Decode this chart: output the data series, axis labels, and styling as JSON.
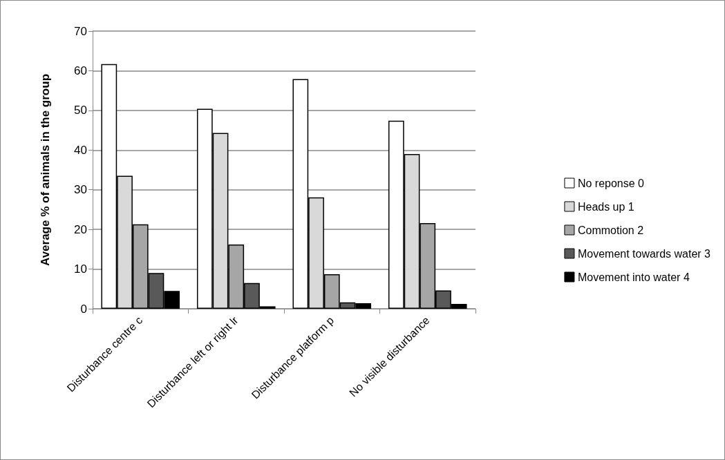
{
  "chart_data": {
    "type": "bar",
    "ylabel": "Average % of animals in the group",
    "categories": [
      "Disturbance centre c",
      "Disturbance left or right lr",
      "Disturbance platform p",
      "No visible disturbance"
    ],
    "series": [
      {
        "name": "No reponse 0",
        "color": "#ffffff",
        "values": [
          61.7,
          50.4,
          57.9,
          47.4
        ]
      },
      {
        "name": "Heads up 1",
        "color": "#d9d9d9",
        "values": [
          33.5,
          44.3,
          28.1,
          39.0
        ]
      },
      {
        "name": "Commotion 2",
        "color": "#a6a6a6",
        "values": [
          21.3,
          16.2,
          8.7,
          21.6
        ]
      },
      {
        "name": "Movement towards water 3",
        "color": "#595959",
        "values": [
          9.0,
          6.5,
          1.6,
          4.6
        ]
      },
      {
        "name": "Movement into water 4",
        "color": "#000000",
        "values": [
          4.5,
          0.6,
          1.4,
          1.2
        ]
      }
    ],
    "ylim": [
      0,
      70
    ],
    "yticks": [
      0,
      10,
      20,
      30,
      40,
      50,
      60,
      70
    ],
    "grid": "y",
    "legend": "right"
  }
}
